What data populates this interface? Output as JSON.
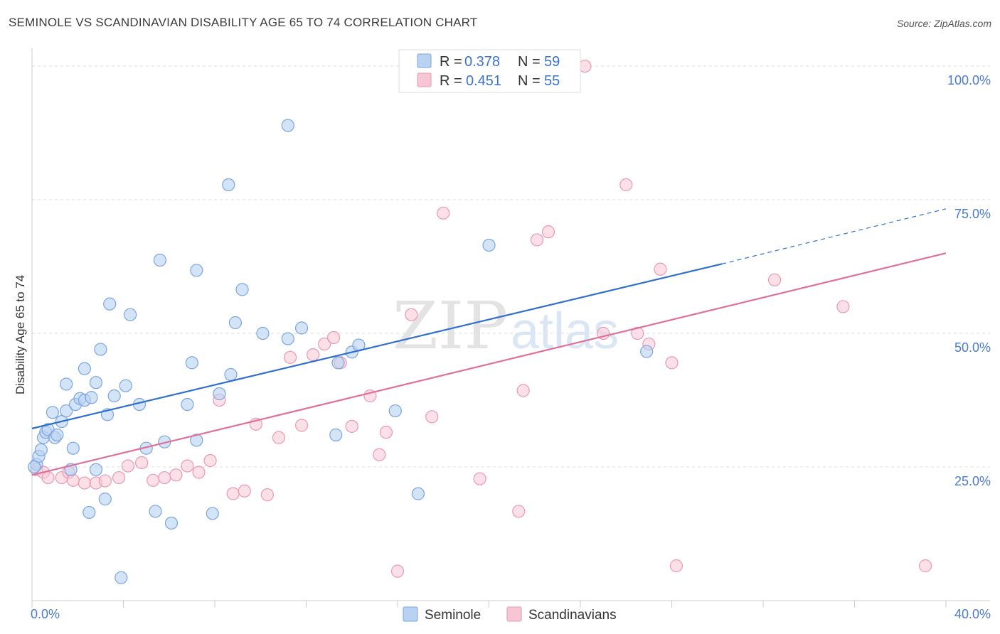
{
  "title": "SEMINOLE VS SCANDINAVIAN DISABILITY AGE 65 TO 74 CORRELATION CHART",
  "source": "Source: ZipAtlas.com",
  "watermark": {
    "zip": "ZIP",
    "atlas": "atlas"
  },
  "legend": {
    "r_label": "R =",
    "n_label": "N =",
    "rows": [
      {
        "r": "0.378",
        "n": "59"
      },
      {
        "r": "0.451",
        "n": "55"
      }
    ]
  },
  "colors": {
    "seminole_fill": "#b8d2f2",
    "seminole_stroke": "#7ba4de",
    "seminole_line": "#2f6fcf",
    "scand_fill": "#f7c6d4",
    "scand_stroke": "#ea98b3",
    "scand_line": "#e0709a",
    "grid": "#dddddd",
    "tick_text": "#4a7bd0"
  },
  "chart_data": {
    "type": "scatter",
    "title": "SEMINOLE VS SCANDINAVIAN DISABILITY AGE 65 TO 74 CORRELATION CHART",
    "xlabel": "",
    "ylabel": "Disability Age 65 to 74",
    "xlim": [
      0,
      40
    ],
    "ylim": [
      0,
      102
    ],
    "x_tick_labels": [
      {
        "value": 0,
        "label": "0.0%"
      },
      {
        "value": 40,
        "label": "40.0%"
      }
    ],
    "y_tick_labels": [
      {
        "value": 25,
        "label": "25.0%"
      },
      {
        "value": 50,
        "label": "50.0%"
      },
      {
        "value": 75,
        "label": "75.0%"
      },
      {
        "value": 100,
        "label": "100.0%"
      }
    ],
    "grid": true,
    "legend_position": "top-center",
    "series": [
      {
        "name": "Seminole",
        "r": 0.378,
        "n": 59,
        "trend": {
          "x0": 0,
          "y0": 32.2,
          "x1": 30.2,
          "y1": 63.0,
          "dashed_to_x": 40,
          "dashed_to_y": 73.3
        },
        "points": [
          [
            0.2,
            25.5
          ],
          [
            0.3,
            27.0
          ],
          [
            0.4,
            28.2
          ],
          [
            0.5,
            30.5
          ],
          [
            0.6,
            31.5
          ],
          [
            0.7,
            32.0
          ],
          [
            0.9,
            35.2
          ],
          [
            1.0,
            30.5
          ],
          [
            1.1,
            31.0
          ],
          [
            1.3,
            33.5
          ],
          [
            1.5,
            35.5
          ],
          [
            1.5,
            40.5
          ],
          [
            1.8,
            28.5
          ],
          [
            1.7,
            24.5
          ],
          [
            1.9,
            36.7
          ],
          [
            2.1,
            37.8
          ],
          [
            2.3,
            37.5
          ],
          [
            2.3,
            43.4
          ],
          [
            2.6,
            38.0
          ],
          [
            2.8,
            40.8
          ],
          [
            2.8,
            24.5
          ],
          [
            3.0,
            47.0
          ],
          [
            3.2,
            19.0
          ],
          [
            3.3,
            34.8
          ],
          [
            3.4,
            55.5
          ],
          [
            3.6,
            38.3
          ],
          [
            3.9,
            4.3
          ],
          [
            4.1,
            40.2
          ],
          [
            4.3,
            53.5
          ],
          [
            4.7,
            36.7
          ],
          [
            5.0,
            28.5
          ],
          [
            5.4,
            16.7
          ],
          [
            5.6,
            63.7
          ],
          [
            5.8,
            29.7
          ],
          [
            6.1,
            14.5
          ],
          [
            6.8,
            36.7
          ],
          [
            7.0,
            44.5
          ],
          [
            7.2,
            61.8
          ],
          [
            7.2,
            30.0
          ],
          [
            7.9,
            16.3
          ],
          [
            8.2,
            38.7
          ],
          [
            8.6,
            77.8
          ],
          [
            8.7,
            42.3
          ],
          [
            8.9,
            52.0
          ],
          [
            9.2,
            58.2
          ],
          [
            10.1,
            50.0
          ],
          [
            11.2,
            49.0
          ],
          [
            11.2,
            88.9
          ],
          [
            11.8,
            51.0
          ],
          [
            13.3,
            31.0
          ],
          [
            13.4,
            44.5
          ],
          [
            14.0,
            46.5
          ],
          [
            14.3,
            47.8
          ],
          [
            15.9,
            35.5
          ],
          [
            16.9,
            20.0
          ],
          [
            20.0,
            66.5
          ],
          [
            26.9,
            46.6
          ],
          [
            2.5,
            16.5
          ],
          [
            0.1,
            25.0
          ]
        ]
      },
      {
        "name": "Scandinavians",
        "r": 0.451,
        "n": 55,
        "trend": {
          "x0": 0,
          "y0": 23.5,
          "x1": 40,
          "y1": 65.0
        },
        "points": [
          [
            0.2,
            24.5
          ],
          [
            0.5,
            24.0
          ],
          [
            0.7,
            23.0
          ],
          [
            1.3,
            23.0
          ],
          [
            1.6,
            24.0
          ],
          [
            1.8,
            22.5
          ],
          [
            2.3,
            22.0
          ],
          [
            2.8,
            22.0
          ],
          [
            3.2,
            22.4
          ],
          [
            3.8,
            23.0
          ],
          [
            4.2,
            25.2
          ],
          [
            4.8,
            25.8
          ],
          [
            5.3,
            22.5
          ],
          [
            5.8,
            23.0
          ],
          [
            6.3,
            23.5
          ],
          [
            6.8,
            25.2
          ],
          [
            7.3,
            24.0
          ],
          [
            7.8,
            26.2
          ],
          [
            8.2,
            37.5
          ],
          [
            8.8,
            20.0
          ],
          [
            9.3,
            20.5
          ],
          [
            9.8,
            33.0
          ],
          [
            10.3,
            19.8
          ],
          [
            10.8,
            30.5
          ],
          [
            11.3,
            45.5
          ],
          [
            11.8,
            32.8
          ],
          [
            12.3,
            46.0
          ],
          [
            12.8,
            48.0
          ],
          [
            13.2,
            49.2
          ],
          [
            13.5,
            44.5
          ],
          [
            14.0,
            32.6
          ],
          [
            14.8,
            38.3
          ],
          [
            15.2,
            27.3
          ],
          [
            15.5,
            31.5
          ],
          [
            16.0,
            5.5
          ],
          [
            16.6,
            53.5
          ],
          [
            17.5,
            34.4
          ],
          [
            18.0,
            72.5
          ],
          [
            19.6,
            22.8
          ],
          [
            20.1,
            100.0
          ],
          [
            21.3,
            16.7
          ],
          [
            21.5,
            39.3
          ],
          [
            22.1,
            67.5
          ],
          [
            22.6,
            69.0
          ],
          [
            24.2,
            100.0
          ],
          [
            25.0,
            50.0
          ],
          [
            26.0,
            77.8
          ],
          [
            26.5,
            50.0
          ],
          [
            27.0,
            48.0
          ],
          [
            27.5,
            62.0
          ],
          [
            28.0,
            44.5
          ],
          [
            28.2,
            6.5
          ],
          [
            32.5,
            60.0
          ],
          [
            35.5,
            55.0
          ],
          [
            39.1,
            6.5
          ]
        ]
      }
    ]
  },
  "bottom_legend": [
    {
      "label": "Seminole"
    },
    {
      "label": "Scandinavians"
    }
  ]
}
